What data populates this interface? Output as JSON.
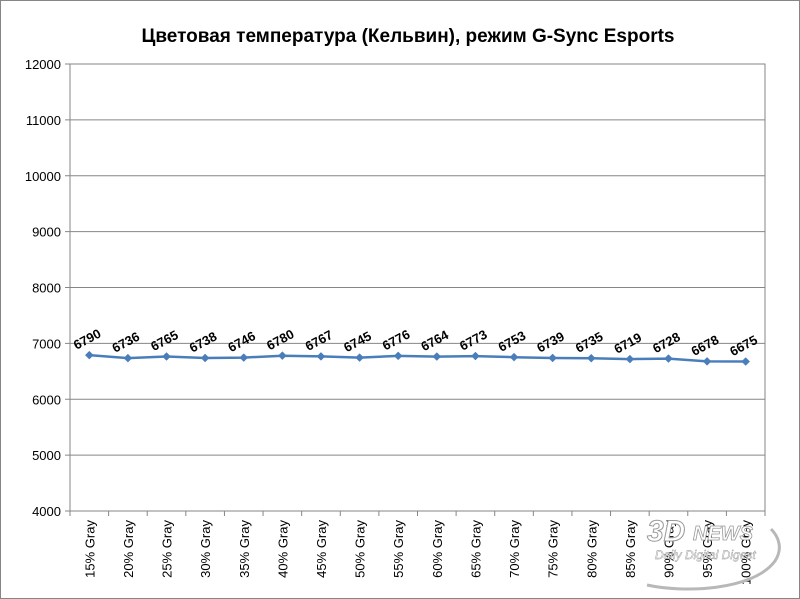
{
  "chart_data": {
    "type": "line",
    "title": "Цветовая температура (Кельвин),  режим G-Sync Esports",
    "xlabel": "",
    "ylabel": "",
    "ylim": [
      4000,
      12000
    ],
    "yticks": [
      "4000",
      "5000",
      "6000",
      "7000",
      "8000",
      "9000",
      "10000",
      "11000",
      "12000"
    ],
    "categories": [
      "15% Gray",
      "20% Gray",
      "25% Gray",
      "30% Gray",
      "35% Gray",
      "40% Gray",
      "45% Gray",
      "50% Gray",
      "55% Gray",
      "60% Gray",
      "65% Gray",
      "70% Gray",
      "75% Gray",
      "80% Gray",
      "85% Gray",
      "90% Gray",
      "95% Gray",
      "100% Gray"
    ],
    "series": [
      {
        "values": [
          6790,
          6736,
          6765,
          6738,
          6746,
          6780,
          6767,
          6745,
          6776,
          6764,
          6773,
          6753,
          6739,
          6735,
          6719,
          6728,
          6678,
          6675
        ],
        "color": "#4a7ebb",
        "marker": "diamond"
      }
    ],
    "grid": true,
    "legend": "none"
  },
  "watermark": {
    "brand": "3D",
    "news": "NEWS",
    "tagline": "Daily Digital Digest"
  },
  "colors": {
    "gridline": "#868686",
    "axis": "#868686",
    "line": "#4a7ebb"
  }
}
